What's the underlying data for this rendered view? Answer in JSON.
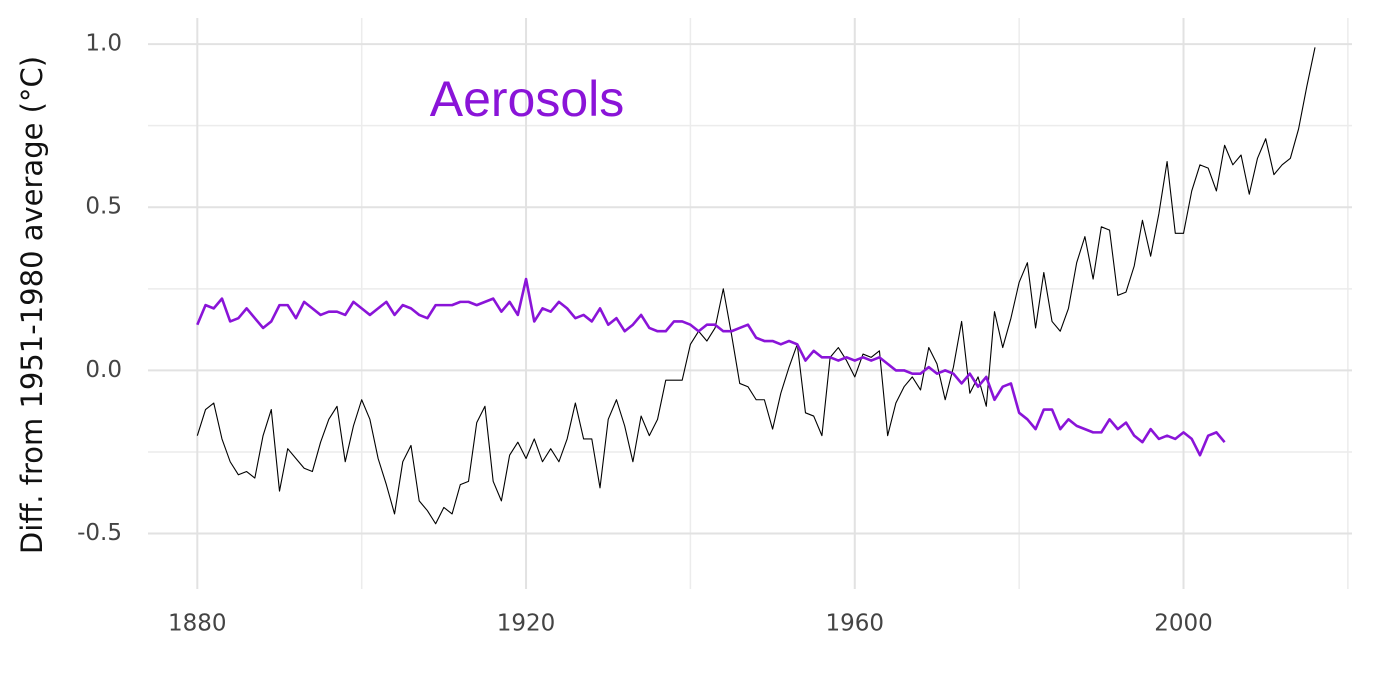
{
  "chart_data": {
    "type": "line",
    "y_label": "Diff. from 1951-1980 average (°C)",
    "x": [
      1880,
      1881,
      1882,
      1883,
      1884,
      1885,
      1886,
      1887,
      1888,
      1889,
      1890,
      1891,
      1892,
      1893,
      1894,
      1895,
      1896,
      1897,
      1898,
      1899,
      1900,
      1901,
      1902,
      1903,
      1904,
      1905,
      1906,
      1907,
      1908,
      1909,
      1910,
      1911,
      1912,
      1913,
      1914,
      1915,
      1916,
      1917,
      1918,
      1919,
      1920,
      1921,
      1922,
      1923,
      1924,
      1925,
      1926,
      1927,
      1928,
      1929,
      1930,
      1931,
      1932,
      1933,
      1934,
      1935,
      1936,
      1937,
      1938,
      1939,
      1940,
      1941,
      1942,
      1943,
      1944,
      1945,
      1946,
      1947,
      1948,
      1949,
      1950,
      1951,
      1952,
      1953,
      1954,
      1955,
      1956,
      1957,
      1958,
      1959,
      1960,
      1961,
      1962,
      1963,
      1964,
      1965,
      1966,
      1967,
      1968,
      1969,
      1970,
      1971,
      1972,
      1973,
      1974,
      1975,
      1976,
      1977,
      1978,
      1979,
      1980,
      1981,
      1982,
      1983,
      1984,
      1985,
      1986,
      1987,
      1988,
      1989,
      1990,
      1991,
      1992,
      1993,
      1994,
      1995,
      1996,
      1997,
      1998,
      1999,
      2000,
      2001,
      2002,
      2003,
      2004,
      2005,
      2006,
      2007,
      2008,
      2009,
      2010,
      2011,
      2012,
      2013,
      2014,
      2015,
      2016
    ],
    "series": [
      {
        "color": "#000000",
        "values": [
          -0.2,
          -0.12,
          -0.1,
          -0.21,
          -0.28,
          -0.32,
          -0.31,
          -0.33,
          -0.2,
          -0.12,
          -0.37,
          -0.24,
          -0.27,
          -0.3,
          -0.31,
          -0.22,
          -0.15,
          -0.11,
          -0.28,
          -0.17,
          -0.09,
          -0.15,
          -0.27,
          -0.35,
          -0.44,
          -0.28,
          -0.23,
          -0.4,
          -0.43,
          -0.47,
          -0.42,
          -0.44,
          -0.35,
          -0.34,
          -0.16,
          -0.11,
          -0.34,
          -0.4,
          -0.26,
          -0.22,
          -0.27,
          -0.21,
          -0.28,
          -0.24,
          -0.28,
          -0.21,
          -0.1,
          -0.21,
          -0.21,
          -0.36,
          -0.15,
          -0.09,
          -0.17,
          -0.28,
          -0.14,
          -0.2,
          -0.15,
          -0.03,
          -0.03,
          -0.03,
          0.08,
          0.12,
          0.09,
          0.13,
          0.25,
          0.11,
          -0.04,
          -0.05,
          -0.09,
          -0.09,
          -0.18,
          -0.07,
          0.01,
          0.08,
          -0.13,
          -0.14,
          -0.2,
          0.04,
          0.07,
          0.03,
          -0.02,
          0.05,
          0.04,
          0.06,
          -0.2,
          -0.1,
          -0.05,
          -0.02,
          -0.06,
          0.07,
          0.02,
          -0.09,
          0.01,
          0.15,
          -0.07,
          -0.02,
          -0.11,
          0.18,
          0.07,
          0.16,
          0.27,
          0.33,
          0.13,
          0.3,
          0.15,
          0.12,
          0.19,
          0.33,
          0.41,
          0.28,
          0.44,
          0.43,
          0.23,
          0.24,
          0.32,
          0.46,
          0.35,
          0.48,
          0.64,
          0.42,
          0.42,
          0.55,
          0.63,
          0.62,
          0.55,
          0.69,
          0.63,
          0.66,
          0.54,
          0.65,
          0.71,
          0.6,
          0.63,
          0.65,
          0.74,
          0.87,
          0.99
        ]
      },
      {
        "name": "Aerosols",
        "color": "#8a14d8",
        "values": [
          0.14,
          0.2,
          0.19,
          0.22,
          0.15,
          0.16,
          0.19,
          0.16,
          0.13,
          0.15,
          0.2,
          0.2,
          0.16,
          0.21,
          0.19,
          0.17,
          0.18,
          0.18,
          0.17,
          0.21,
          0.19,
          0.17,
          0.19,
          0.21,
          0.17,
          0.2,
          0.19,
          0.17,
          0.16,
          0.2,
          0.2,
          0.2,
          0.21,
          0.21,
          0.2,
          0.21,
          0.22,
          0.18,
          0.21,
          0.17,
          0.28,
          0.15,
          0.19,
          0.18,
          0.21,
          0.19,
          0.16,
          0.17,
          0.15,
          0.19,
          0.14,
          0.16,
          0.12,
          0.14,
          0.17,
          0.13,
          0.12,
          0.12,
          0.15,
          0.15,
          0.14,
          0.12,
          0.14,
          0.14,
          0.12,
          0.12,
          0.13,
          0.14,
          0.1,
          0.09,
          0.09,
          0.08,
          0.09,
          0.08,
          0.03,
          0.06,
          0.04,
          0.04,
          0.03,
          0.04,
          0.03,
          0.04,
          0.03,
          0.04,
          0.02,
          0.0,
          0.0,
          -0.01,
          -0.01,
          0.01,
          -0.01,
          0.0,
          -0.01,
          -0.04,
          -0.01,
          -0.05,
          -0.02,
          -0.09,
          -0.05,
          -0.04,
          -0.13,
          -0.15,
          -0.18,
          -0.12,
          -0.12,
          -0.18,
          -0.15,
          -0.17,
          -0.18,
          -0.19,
          -0.19,
          -0.15,
          -0.18,
          -0.16,
          -0.2,
          -0.22,
          -0.18,
          -0.21,
          -0.2,
          -0.21,
          -0.19,
          -0.21,
          -0.26,
          -0.2,
          -0.19,
          -0.22,
          null,
          null,
          null,
          null,
          null,
          null,
          null,
          null,
          null,
          null,
          null
        ]
      }
    ],
    "xlim": [
      1874,
      2020.5
    ],
    "ylim": [
      -0.67,
      1.08
    ],
    "xticks": [
      1880,
      1920,
      1960,
      2000
    ],
    "yticks": [
      {
        "value": 1.0,
        "label": "1.0"
      },
      0.5,
      {
        "value": 0.0,
        "label": "0.0"
      },
      -0.5
    ],
    "minor_xticks": [
      1900,
      1940,
      1980,
      2020
    ],
    "minor_yticks": [
      0.75,
      0.25,
      -0.25
    ],
    "grid": true
  }
}
